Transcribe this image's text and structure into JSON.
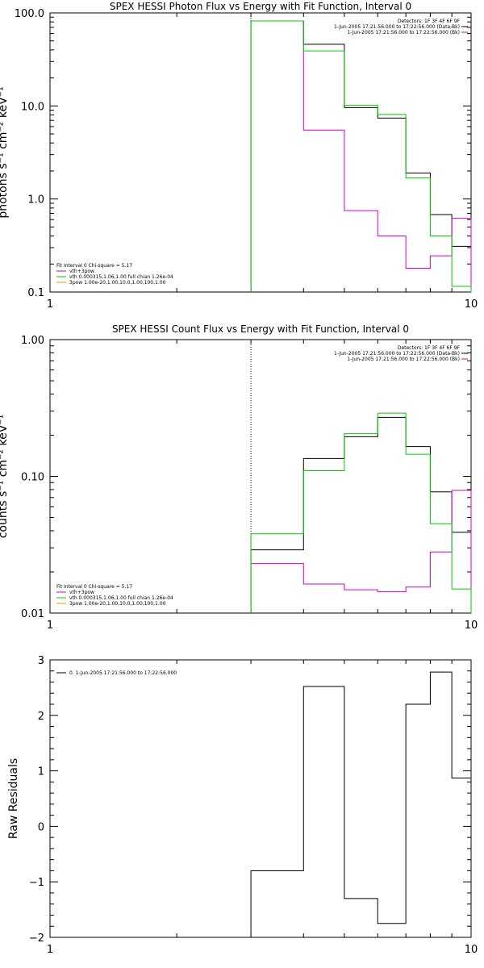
{
  "chart_data": [
    {
      "type": "line",
      "title": "SPEX HESSI Photon Flux vs Energy with Fit Function, Interval 0",
      "ylabel": "photons s⁻¹ cm⁻² keV⁻¹",
      "xlabel": "",
      "xscale": "log",
      "yscale": "log",
      "xlim": [
        1,
        10
      ],
      "ylim": [
        0.1,
        100
      ],
      "xticks": [
        "1",
        "10"
      ],
      "yticks": [
        "0.1",
        "1.0",
        "10.0",
        "100.0"
      ],
      "ytick_values": [
        0.1,
        1,
        10,
        100
      ],
      "vline_x": 3.0,
      "legend_right": {
        "position": "top-right",
        "lines": [
          {
            "text": "Detectors: 1F 3F 4F 6F 9F",
            "color": ""
          },
          {
            "text": "1-Jun-2005 17:21:56.000 to 17:22:56.000 (Data-Bk)",
            "color": "#000000"
          },
          {
            "text": "1-Jun-2005 17:21:56.000 to 17:22:56.000 (Bk)",
            "color": "#cc00cc"
          }
        ]
      },
      "legend_left": {
        "position": "bottom-left",
        "lines": [
          {
            "text": "Fit Interval 0   Chi-square = 5.17",
            "color": ""
          },
          {
            "text": "vth+3pow",
            "color": "#cc00cc"
          },
          {
            "text": "vth 0.000315,1.06,1.00  full chian 1.26e-04",
            "color": "#00cc00"
          },
          {
            "text": "3pow 1.00e-20,1.00,10.0,1.00,100,1.00",
            "color": "#e0a000"
          }
        ]
      },
      "series": [
        {
          "name": "Data-Bk",
          "color": "#000000",
          "type": "step",
          "edges": [
            3,
            4,
            5,
            6,
            7,
            8,
            9,
            10
          ],
          "values": [
            82,
            46,
            9.6,
            7.4,
            1.9,
            0.68,
            0.31
          ]
        },
        {
          "name": "Bk",
          "color": "#cc00cc",
          "type": "step",
          "edges": [
            3,
            4,
            5,
            6,
            7,
            8,
            9,
            10
          ],
          "values": [
            82,
            5.5,
            0.75,
            0.4,
            0.18,
            0.245,
            0.62
          ]
        },
        {
          "name": "vth+3pow",
          "color": "#00cc00",
          "type": "step",
          "edges": [
            3,
            4,
            5,
            6,
            7,
            8,
            9,
            10
          ],
          "values": [
            82,
            39,
            10.2,
            8.1,
            1.68,
            0.4,
            0.115
          ]
        }
      ]
    },
    {
      "type": "line",
      "title": "SPEX HESSI Count Flux vs Energy with Fit Function, Interval 0",
      "ylabel": "counts s⁻¹ cm⁻² keV⁻¹",
      "xlabel": "",
      "xscale": "log",
      "yscale": "log",
      "xlim": [
        1,
        10
      ],
      "ylim": [
        0.01,
        1
      ],
      "xticks": [
        "1",
        "10"
      ],
      "yticks": [
        "0.01",
        "0.10",
        "1.00"
      ],
      "ytick_values": [
        0.01,
        0.1,
        1
      ],
      "vline_x": 3.0,
      "legend_right": {
        "position": "top-right",
        "lines": [
          {
            "text": "Detectors: 1F 3F 4F 6F 9F",
            "color": ""
          },
          {
            "text": "1-Jun-2005 17:21:56.000 to 17:22:56.000 (Data-Bk)",
            "color": "#000000"
          },
          {
            "text": "1-Jun-2005 17:21:56.000 to 17:22:56.000 (Bk)",
            "color": "#cc00cc"
          }
        ]
      },
      "legend_left": {
        "position": "bottom-left",
        "lines": [
          {
            "text": "Fit Interval 0   Chi-square = 5.17",
            "color": ""
          },
          {
            "text": "vth+3pow",
            "color": "#cc00cc"
          },
          {
            "text": "vth 0.000315,1.06,1.00  full chian 1.26e-04",
            "color": "#00cc00"
          },
          {
            "text": "3pow 1.00e-20,1.00,10.0,1.00,100,1.00",
            "color": "#e0a000"
          }
        ]
      },
      "series": [
        {
          "name": "Data-Bk",
          "color": "#000000",
          "type": "step",
          "edges": [
            3,
            4,
            5,
            6,
            7,
            8,
            9,
            10
          ],
          "values": [
            0.029,
            0.135,
            0.195,
            0.27,
            0.165,
            0.077,
            0.039
          ]
        },
        {
          "name": "Bk",
          "color": "#cc00cc",
          "type": "step",
          "edges": [
            3,
            4,
            5,
            6,
            7,
            8,
            9,
            10
          ],
          "values": [
            0.023,
            0.0163,
            0.0148,
            0.0143,
            0.0155,
            0.028,
            0.079
          ]
        },
        {
          "name": "vth+3pow",
          "color": "#00cc00",
          "type": "step",
          "edges": [
            3,
            4,
            5,
            6,
            7,
            8,
            9,
            10
          ],
          "values": [
            0.038,
            0.11,
            0.205,
            0.29,
            0.145,
            0.045,
            0.015
          ]
        }
      ]
    },
    {
      "type": "line",
      "title": "",
      "ylabel": "Raw Residuals",
      "xlabel": "",
      "xscale": "log",
      "yscale": "linear",
      "xlim": [
        1,
        10
      ],
      "ylim": [
        -2,
        3
      ],
      "xticks": [
        "1",
        "10"
      ],
      "yticks": [
        "−2",
        "−1",
        "0",
        "1",
        "2",
        "3"
      ],
      "ytick_values": [
        -2,
        -1,
        0,
        1,
        2,
        3
      ],
      "legend_left": {
        "position": "top-left",
        "lines": [
          {
            "text": "0. 1-Jun-2005 17:21:56.000 to 17:22:56.000",
            "color": "#000000"
          }
        ]
      },
      "series": [
        {
          "name": "0. 1-Jun-2005 17:21:56.000 to 17:22:56.000",
          "color": "#000000",
          "type": "step",
          "edges": [
            3,
            4,
            5,
            6,
            7,
            8,
            9,
            10
          ],
          "values": [
            -0.8,
            2.52,
            -1.3,
            -1.75,
            2.2,
            2.78,
            0.87
          ]
        }
      ]
    }
  ]
}
